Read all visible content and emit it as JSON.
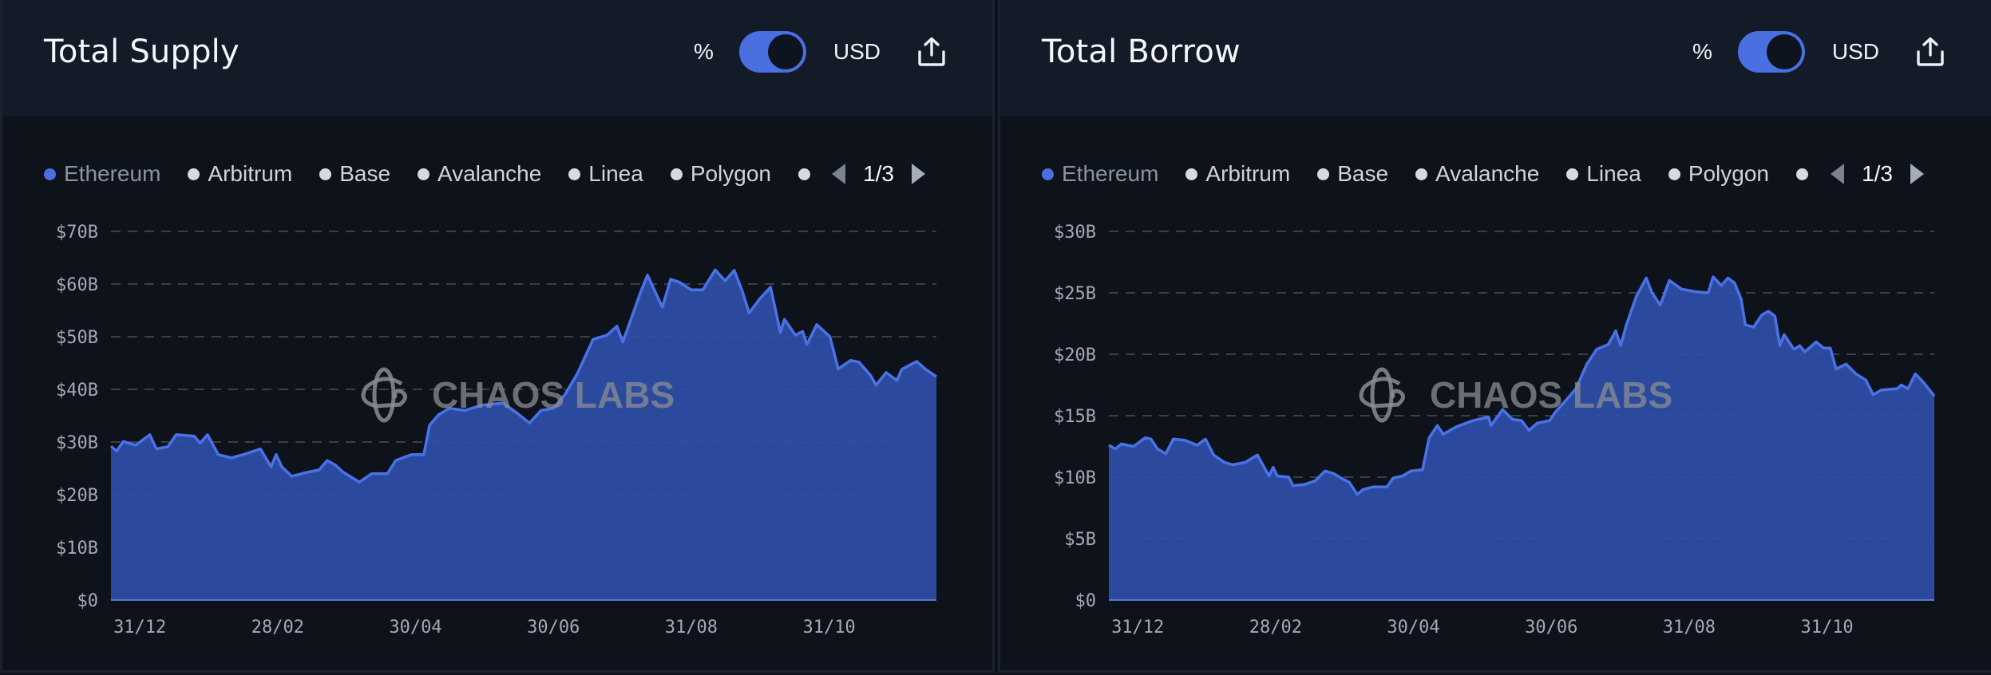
{
  "colors": {
    "accent": "#4a6fe0",
    "area_fill": "#2f4fa8",
    "line": "#4a72e8",
    "background": "#0e121b",
    "header_bg": "#131a28",
    "grid": "#3a3f4a"
  },
  "panels": [
    {
      "title": "Total Supply",
      "toggle": {
        "left_label": "%",
        "right_label": "USD",
        "state": "USD"
      },
      "export_icon": "share-upload-icon",
      "legend": {
        "items": [
          {
            "label": "Ethereum",
            "active": true
          },
          {
            "label": "Arbitrum",
            "active": false
          },
          {
            "label": "Base",
            "active": false
          },
          {
            "label": "Avalanche",
            "active": false
          },
          {
            "label": "Linea",
            "active": false
          },
          {
            "label": "Polygon",
            "active": false
          },
          {
            "label": "",
            "active": false
          }
        ],
        "page": "1/3"
      },
      "watermark": "CHAOS LABS"
    },
    {
      "title": "Total Borrow",
      "toggle": {
        "left_label": "%",
        "right_label": "USD",
        "state": "USD"
      },
      "export_icon": "share-upload-icon",
      "legend": {
        "items": [
          {
            "label": "Ethereum",
            "active": true
          },
          {
            "label": "Arbitrum",
            "active": false
          },
          {
            "label": "Base",
            "active": false
          },
          {
            "label": "Avalanche",
            "active": false
          },
          {
            "label": "Linea",
            "active": false
          },
          {
            "label": "Polygon",
            "active": false
          },
          {
            "label": "",
            "active": false
          }
        ],
        "page": "1/3"
      },
      "watermark": "CHAOS LABS"
    }
  ],
  "chart_data": [
    {
      "type": "area",
      "title": "Total Supply",
      "series_name": "Ethereum",
      "xlabel": "",
      "ylabel": "",
      "ylim": [
        0,
        70
      ],
      "yticks": [
        "$0",
        "$10B",
        "$20B",
        "$30B",
        "$40B",
        "$50B",
        "$60B",
        "$70B"
      ],
      "ytick_values": [
        0,
        10,
        20,
        30,
        40,
        50,
        60,
        70
      ],
      "xticks": [
        "31/12",
        "28/02",
        "30/04",
        "30/06",
        "31/08",
        "31/10"
      ],
      "xtick_positions": [
        0.035,
        0.202,
        0.369,
        0.536,
        0.703,
        0.87
      ],
      "grid": true,
      "unit": "USD billions",
      "points": [
        [
          0.0,
          29.2
        ],
        [
          0.007,
          28.3
        ],
        [
          0.015,
          30.1
        ],
        [
          0.03,
          29.4
        ],
        [
          0.047,
          31.4
        ],
        [
          0.055,
          28.7
        ],
        [
          0.069,
          29.1
        ],
        [
          0.079,
          31.4
        ],
        [
          0.101,
          31.1
        ],
        [
          0.108,
          29.8
        ],
        [
          0.117,
          31.4
        ],
        [
          0.13,
          27.6
        ],
        [
          0.146,
          27.0
        ],
        [
          0.162,
          27.7
        ],
        [
          0.181,
          28.7
        ],
        [
          0.194,
          25.3
        ],
        [
          0.2,
          27.6
        ],
        [
          0.207,
          25.3
        ],
        [
          0.219,
          23.5
        ],
        [
          0.239,
          24.3
        ],
        [
          0.252,
          24.7
        ],
        [
          0.262,
          26.5
        ],
        [
          0.272,
          25.6
        ],
        [
          0.281,
          24.3
        ],
        [
          0.301,
          22.4
        ],
        [
          0.316,
          24.0
        ],
        [
          0.335,
          24.0
        ],
        [
          0.345,
          26.5
        ],
        [
          0.364,
          27.6
        ],
        [
          0.379,
          27.6
        ],
        [
          0.386,
          33.2
        ],
        [
          0.397,
          35.2
        ],
        [
          0.41,
          36.4
        ],
        [
          0.429,
          36.0
        ],
        [
          0.449,
          37.0
        ],
        [
          0.475,
          37.4
        ],
        [
          0.492,
          35.5
        ],
        [
          0.507,
          33.6
        ],
        [
          0.521,
          36.0
        ],
        [
          0.536,
          36.4
        ],
        [
          0.55,
          39.0
        ],
        [
          0.565,
          43.0
        ],
        [
          0.584,
          49.5
        ],
        [
          0.601,
          50.3
        ],
        [
          0.613,
          52.0
        ],
        [
          0.62,
          49.0
        ],
        [
          0.63,
          53.3
        ],
        [
          0.642,
          58.6
        ],
        [
          0.65,
          61.7
        ],
        [
          0.66,
          58.3
        ],
        [
          0.668,
          55.6
        ],
        [
          0.678,
          60.9
        ],
        [
          0.688,
          60.4
        ],
        [
          0.703,
          58.9
        ],
        [
          0.717,
          58.9
        ],
        [
          0.732,
          62.7
        ],
        [
          0.744,
          60.6
        ],
        [
          0.755,
          62.6
        ],
        [
          0.765,
          58.6
        ],
        [
          0.773,
          54.5
        ],
        [
          0.787,
          57.4
        ],
        [
          0.799,
          59.4
        ],
        [
          0.811,
          50.8
        ],
        [
          0.816,
          53.3
        ],
        [
          0.829,
          50.3
        ],
        [
          0.838,
          51.0
        ],
        [
          0.843,
          48.5
        ],
        [
          0.855,
          52.3
        ],
        [
          0.871,
          50.0
        ],
        [
          0.881,
          43.9
        ],
        [
          0.896,
          45.5
        ],
        [
          0.906,
          45.2
        ],
        [
          0.92,
          42.7
        ],
        [
          0.927,
          40.8
        ],
        [
          0.939,
          43.2
        ],
        [
          0.952,
          41.7
        ],
        [
          0.958,
          43.8
        ],
        [
          0.976,
          45.3
        ],
        [
          0.987,
          43.8
        ],
        [
          1.0,
          42.4
        ]
      ]
    },
    {
      "type": "area",
      "title": "Total Borrow",
      "series_name": "Ethereum",
      "xlabel": "",
      "ylabel": "",
      "ylim": [
        0,
        30
      ],
      "yticks": [
        "$0",
        "$5B",
        "$10B",
        "$15B",
        "$20B",
        "$25B",
        "$30B"
      ],
      "ytick_values": [
        0,
        5,
        10,
        15,
        20,
        25,
        30
      ],
      "xticks": [
        "31/12",
        "28/02",
        "30/04",
        "30/06",
        "31/08",
        "31/10"
      ],
      "xtick_positions": [
        0.035,
        0.202,
        0.369,
        0.536,
        0.703,
        0.87
      ],
      "grid": true,
      "unit": "USD billions",
      "points": [
        [
          0.0,
          12.6
        ],
        [
          0.008,
          12.3
        ],
        [
          0.015,
          12.7
        ],
        [
          0.03,
          12.5
        ],
        [
          0.044,
          13.2
        ],
        [
          0.051,
          13.1
        ],
        [
          0.059,
          12.3
        ],
        [
          0.069,
          11.9
        ],
        [
          0.078,
          13.1
        ],
        [
          0.092,
          13.0
        ],
        [
          0.107,
          12.6
        ],
        [
          0.117,
          13.1
        ],
        [
          0.127,
          11.8
        ],
        [
          0.14,
          11.2
        ],
        [
          0.15,
          11.0
        ],
        [
          0.165,
          11.2
        ],
        [
          0.18,
          11.8
        ],
        [
          0.194,
          10.1
        ],
        [
          0.199,
          10.8
        ],
        [
          0.204,
          10.1
        ],
        [
          0.218,
          10.0
        ],
        [
          0.223,
          9.3
        ],
        [
          0.237,
          9.4
        ],
        [
          0.25,
          9.7
        ],
        [
          0.262,
          10.5
        ],
        [
          0.272,
          10.3
        ],
        [
          0.282,
          9.9
        ],
        [
          0.291,
          9.6
        ],
        [
          0.301,
          8.6
        ],
        [
          0.308,
          9.0
        ],
        [
          0.32,
          9.2
        ],
        [
          0.337,
          9.2
        ],
        [
          0.344,
          9.9
        ],
        [
          0.356,
          10.1
        ],
        [
          0.366,
          10.5
        ],
        [
          0.38,
          10.6
        ],
        [
          0.388,
          13.2
        ],
        [
          0.398,
          14.2
        ],
        [
          0.405,
          13.5
        ],
        [
          0.421,
          14.1
        ],
        [
          0.441,
          14.6
        ],
        [
          0.46,
          14.9
        ],
        [
          0.463,
          14.2
        ],
        [
          0.477,
          15.5
        ],
        [
          0.489,
          14.7
        ],
        [
          0.5,
          14.6
        ],
        [
          0.509,
          13.8
        ],
        [
          0.519,
          14.4
        ],
        [
          0.534,
          14.6
        ],
        [
          0.541,
          15.3
        ],
        [
          0.553,
          16.2
        ],
        [
          0.566,
          17.2
        ],
        [
          0.579,
          19.2
        ],
        [
          0.591,
          20.4
        ],
        [
          0.605,
          20.8
        ],
        [
          0.614,
          21.9
        ],
        [
          0.62,
          20.7
        ],
        [
          0.627,
          22.4
        ],
        [
          0.639,
          24.7
        ],
        [
          0.651,
          26.2
        ],
        [
          0.658,
          25.0
        ],
        [
          0.668,
          24.0
        ],
        [
          0.679,
          26.0
        ],
        [
          0.694,
          25.3
        ],
        [
          0.71,
          25.1
        ],
        [
          0.726,
          25.0
        ],
        [
          0.732,
          26.3
        ],
        [
          0.742,
          25.6
        ],
        [
          0.75,
          26.2
        ],
        [
          0.758,
          25.8
        ],
        [
          0.766,
          24.5
        ],
        [
          0.771,
          22.4
        ],
        [
          0.781,
          22.2
        ],
        [
          0.791,
          23.2
        ],
        [
          0.799,
          23.5
        ],
        [
          0.807,
          23.1
        ],
        [
          0.813,
          20.7
        ],
        [
          0.818,
          21.6
        ],
        [
          0.83,
          20.4
        ],
        [
          0.837,
          20.7
        ],
        [
          0.843,
          20.2
        ],
        [
          0.857,
          21.0
        ],
        [
          0.866,
          20.5
        ],
        [
          0.874,
          20.5
        ],
        [
          0.881,
          18.8
        ],
        [
          0.893,
          19.2
        ],
        [
          0.905,
          18.4
        ],
        [
          0.917,
          17.9
        ],
        [
          0.926,
          16.7
        ],
        [
          0.936,
          17.1
        ],
        [
          0.955,
          17.2
        ],
        [
          0.96,
          17.5
        ],
        [
          0.968,
          17.2
        ],
        [
          0.977,
          18.4
        ],
        [
          0.987,
          17.7
        ],
        [
          1.0,
          16.6
        ]
      ]
    }
  ]
}
